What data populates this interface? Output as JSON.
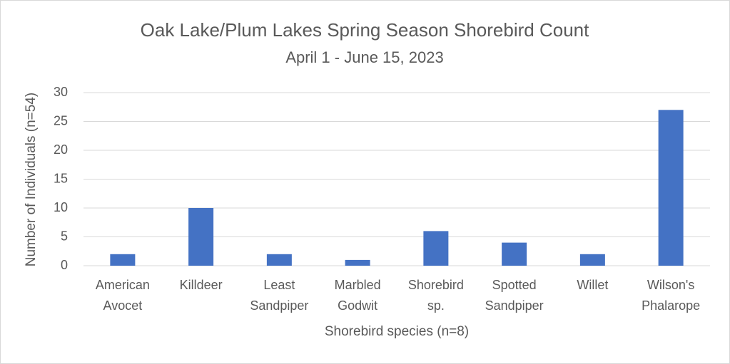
{
  "chart_data": {
    "type": "bar",
    "title": "Oak Lake/Plum Lakes Spring Season Shorebird Count",
    "subtitle": "April 1 - June 15, 2023",
    "x_label": "Shorebird species (n=8)",
    "y_label": "Number of Individuals (n=54)",
    "categories": [
      "American Avocet",
      "Killdeer",
      "Least Sandpiper",
      "Marbled Godwit",
      "Shorebird sp.",
      "Spotted Sandpiper",
      "Willet",
      "Wilson's Phalarope"
    ],
    "values": [
      2,
      10,
      2,
      1,
      6,
      4,
      2,
      27
    ],
    "color": "#4472c4",
    "ylim": [
      0,
      30
    ],
    "yticks": [
      0,
      5,
      10,
      15,
      20,
      25,
      30
    ],
    "grid": true
  }
}
